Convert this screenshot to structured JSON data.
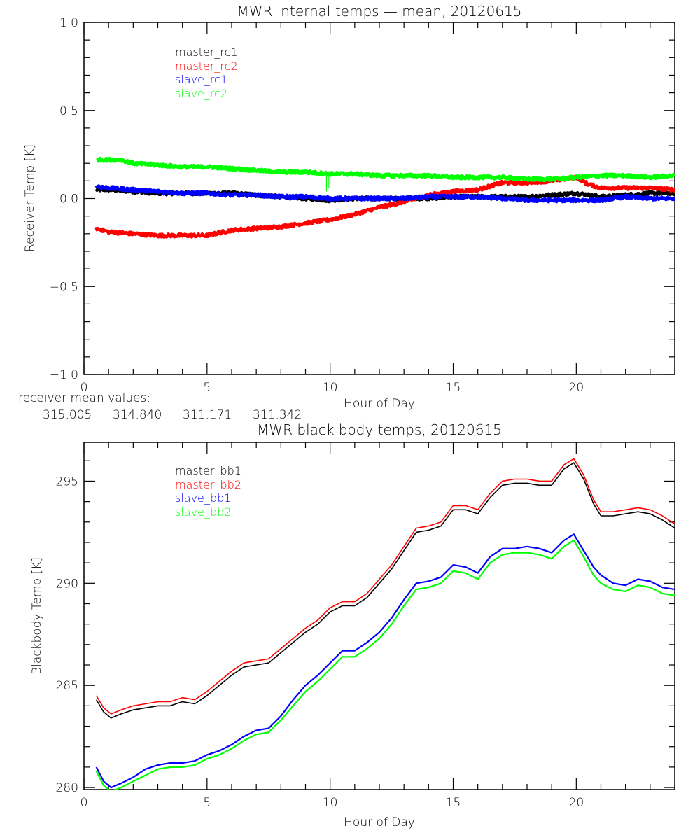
{
  "chart_data": [
    {
      "type": "line",
      "title": "MWR internal temps — mean, 20120615",
      "xlabel": "Hour of Day",
      "ylabel": "Receiver Temp [K]",
      "xlim": [
        0,
        24
      ],
      "ylim": [
        -1.0,
        1.0
      ],
      "xticks": [
        "0",
        "5",
        "10",
        "15",
        "20"
      ],
      "xtick_values": [
        0,
        5,
        10,
        15,
        20
      ],
      "x_minor_step": 1,
      "yticks": [
        "−1.0",
        "−0.5",
        "0.0",
        "0.5",
        "1.0"
      ],
      "ytick_values": [
        -1.0,
        -0.5,
        0.0,
        0.5,
        1.0
      ],
      "y_minor_step": 0.1,
      "grid": false,
      "legend_position": "top-left",
      "noise": true,
      "series": [
        {
          "name": "master_rc1",
          "color": "#000000",
          "x": [
            0.5,
            1,
            2,
            3,
            4,
            5,
            6,
            7,
            8,
            9,
            10,
            11,
            12,
            13,
            14,
            15,
            16,
            17,
            18,
            19,
            20,
            21,
            22,
            23,
            24
          ],
          "y": [
            0.05,
            0.05,
            0.04,
            0.03,
            0.03,
            0.03,
            0.03,
            0.02,
            0.01,
            0.0,
            -0.01,
            0.0,
            0.0,
            0.0,
            0.0,
            0.01,
            0.01,
            0.01,
            0.01,
            0.02,
            0.03,
            0.01,
            0.02,
            0.03,
            0.03
          ]
        },
        {
          "name": "master_rc2",
          "color": "#ff0000",
          "x": [
            0.5,
            1,
            2,
            3,
            4,
            5,
            6,
            7,
            8,
            9,
            10,
            11,
            12,
            13,
            14,
            15,
            16,
            17,
            18,
            19,
            19.5,
            20,
            20.5,
            21,
            22,
            23,
            24
          ],
          "y": [
            -0.17,
            -0.19,
            -0.2,
            -0.21,
            -0.21,
            -0.21,
            -0.18,
            -0.17,
            -0.16,
            -0.14,
            -0.12,
            -0.09,
            -0.05,
            -0.02,
            0.02,
            0.04,
            0.05,
            0.09,
            0.09,
            0.1,
            0.11,
            0.12,
            0.08,
            0.06,
            0.06,
            0.06,
            0.05
          ]
        },
        {
          "name": "slave_rc1",
          "color": "#0000ff",
          "x": [
            0.5,
            1,
            2,
            3,
            4,
            5,
            6,
            7,
            8,
            9,
            10,
            11,
            12,
            13,
            14,
            15,
            16,
            17,
            18,
            19,
            20,
            21,
            22,
            23,
            24
          ],
          "y": [
            0.07,
            0.06,
            0.05,
            0.04,
            0.03,
            0.03,
            0.02,
            0.02,
            0.01,
            0.01,
            0.0,
            0.0,
            0.0,
            0.0,
            0.01,
            0.01,
            0.01,
            0.0,
            -0.01,
            -0.01,
            -0.01,
            -0.01,
            0.01,
            0.0,
            0.0
          ]
        },
        {
          "name": "slave_rc2",
          "color": "#00ff00",
          "x": [
            0.5,
            1,
            1.5,
            2,
            3,
            4,
            5,
            6,
            7,
            8,
            9,
            10,
            11,
            12,
            13,
            14,
            15,
            16,
            17,
            18,
            19,
            20,
            21,
            22,
            23,
            24
          ],
          "y": [
            0.22,
            0.22,
            0.22,
            0.2,
            0.19,
            0.18,
            0.18,
            0.17,
            0.16,
            0.15,
            0.15,
            0.14,
            0.14,
            0.13,
            0.13,
            0.13,
            0.12,
            0.12,
            0.12,
            0.11,
            0.11,
            0.12,
            0.13,
            0.13,
            0.12,
            0.13
          ]
        }
      ],
      "annotation": {
        "label": "receiver mean values:",
        "values": [
          {
            "text": "315.005",
            "color": "#000000"
          },
          {
            "text": "314.840",
            "color": "#ff0000"
          },
          {
            "text": "311.171",
            "color": "#0000ff"
          },
          {
            "text": "311.342",
            "color": "#00ff00"
          }
        ]
      }
    },
    {
      "type": "line",
      "title": "MWR black body temps, 20120615",
      "xlabel": "Hour of Day",
      "ylabel": "Blackbody Temp [K]",
      "xlim": [
        0,
        24
      ],
      "ylim": [
        279.9,
        296.9
      ],
      "xticks": [
        "0",
        "5",
        "10",
        "15",
        "20"
      ],
      "xtick_values": [
        0,
        5,
        10,
        15,
        20
      ],
      "x_minor_step": 1,
      "yticks": [
        "280",
        "285",
        "290",
        "295"
      ],
      "ytick_values": [
        280,
        285,
        290,
        295
      ],
      "y_minor_step": 1,
      "grid": false,
      "legend_position": "top-left",
      "noise": false,
      "series": [
        {
          "name": "master_bb1",
          "color": "#000000",
          "x": [
            0.5,
            0.8,
            1.1,
            1.5,
            2,
            2.5,
            3,
            3.5,
            4,
            4.5,
            5,
            5.5,
            6,
            6.5,
            7,
            7.5,
            8,
            8.5,
            9,
            9.5,
            10,
            10.5,
            11,
            11.5,
            12,
            12.5,
            13,
            13.5,
            14,
            14.5,
            15,
            15.5,
            16,
            16.5,
            17,
            17.5,
            18,
            18.5,
            19,
            19.5,
            19.9,
            20.3,
            20.7,
            21,
            21.5,
            22,
            22.5,
            23,
            23.5,
            24
          ],
          "y": [
            284.3,
            283.7,
            283.4,
            283.6,
            283.8,
            283.9,
            284.0,
            284.0,
            284.2,
            284.1,
            284.5,
            285.0,
            285.5,
            285.9,
            286.0,
            286.1,
            286.6,
            287.1,
            287.6,
            288.0,
            288.6,
            288.9,
            288.9,
            289.3,
            290.0,
            290.7,
            291.6,
            292.5,
            292.6,
            292.8,
            293.6,
            293.6,
            293.4,
            294.2,
            294.8,
            294.9,
            294.9,
            294.8,
            294.8,
            295.6,
            295.9,
            295.1,
            293.9,
            293.3,
            293.3,
            293.4,
            293.5,
            293.4,
            293.1,
            292.7
          ]
        },
        {
          "name": "master_bb2",
          "color": "#ff0000",
          "x": [
            0.5,
            0.8,
            1.1,
            1.5,
            2,
            2.5,
            3,
            3.5,
            4,
            4.5,
            5,
            5.5,
            6,
            6.5,
            7,
            7.5,
            8,
            8.5,
            9,
            9.5,
            10,
            10.5,
            11,
            11.5,
            12,
            12.5,
            13,
            13.5,
            14,
            14.5,
            15,
            15.5,
            16,
            16.5,
            17,
            17.5,
            18,
            18.5,
            19,
            19.5,
            19.9,
            20.3,
            20.7,
            21,
            21.5,
            22,
            22.5,
            23,
            23.5,
            24
          ],
          "y": [
            284.5,
            283.9,
            283.6,
            283.8,
            284.0,
            284.1,
            284.2,
            284.2,
            284.4,
            284.3,
            284.7,
            285.2,
            285.7,
            286.1,
            286.2,
            286.3,
            286.8,
            287.3,
            287.8,
            288.2,
            288.8,
            289.1,
            289.1,
            289.5,
            290.2,
            290.9,
            291.8,
            292.7,
            292.8,
            293.0,
            293.8,
            293.8,
            293.6,
            294.4,
            295.0,
            295.1,
            295.1,
            295.0,
            295.0,
            295.8,
            296.1,
            295.3,
            294.1,
            293.5,
            293.5,
            293.6,
            293.7,
            293.6,
            293.3,
            292.9
          ]
        },
        {
          "name": "slave_bb1",
          "color": "#0000ff",
          "x": [
            0.5,
            0.8,
            1.1,
            1.5,
            2,
            2.5,
            3,
            3.5,
            4,
            4.5,
            5,
            5.5,
            6,
            6.5,
            7,
            7.5,
            8,
            8.5,
            9,
            9.5,
            10,
            10.5,
            11,
            11.5,
            12,
            12.5,
            13,
            13.5,
            14,
            14.5,
            15,
            15.5,
            16,
            16.5,
            17,
            17.5,
            18,
            18.5,
            19,
            19.5,
            19.9,
            20.3,
            20.7,
            21,
            21.5,
            22,
            22.5,
            23,
            23.5,
            24
          ],
          "y": [
            281.0,
            280.3,
            280.0,
            280.2,
            280.5,
            280.9,
            281.1,
            281.2,
            281.2,
            281.3,
            281.6,
            281.8,
            282.1,
            282.5,
            282.8,
            282.9,
            283.5,
            284.3,
            285.0,
            285.5,
            286.1,
            286.7,
            286.7,
            287.1,
            287.6,
            288.3,
            289.2,
            290.0,
            290.1,
            290.3,
            290.9,
            290.8,
            290.5,
            291.3,
            291.7,
            291.7,
            291.8,
            291.7,
            291.5,
            292.1,
            292.4,
            291.6,
            290.8,
            290.4,
            290.0,
            289.9,
            290.2,
            290.1,
            289.8,
            289.7
          ]
        },
        {
          "name": "slave_bb2",
          "color": "#00ff00",
          "x": [
            0.5,
            0.8,
            1.1,
            1.5,
            2,
            2.5,
            3,
            3.5,
            4,
            4.5,
            5,
            5.5,
            6,
            6.5,
            7,
            7.5,
            8,
            8.5,
            9,
            9.5,
            10,
            10.5,
            11,
            11.5,
            12,
            12.5,
            13,
            13.5,
            14,
            14.5,
            15,
            15.5,
            16,
            16.5,
            17,
            17.5,
            18,
            18.5,
            19,
            19.5,
            19.9,
            20.3,
            20.7,
            21,
            21.5,
            22,
            22.5,
            23,
            23.5,
            24
          ],
          "y": [
            280.8,
            280.1,
            279.8,
            280.0,
            280.3,
            280.6,
            280.9,
            281.0,
            281.0,
            281.1,
            281.4,
            281.6,
            281.9,
            282.3,
            282.6,
            282.7,
            283.3,
            284.0,
            284.7,
            285.2,
            285.8,
            286.4,
            286.4,
            286.8,
            287.3,
            288.0,
            288.9,
            289.7,
            289.8,
            290.0,
            290.6,
            290.5,
            290.2,
            291.0,
            291.4,
            291.5,
            291.5,
            291.4,
            291.2,
            291.8,
            292.1,
            291.3,
            290.4,
            290.0,
            289.7,
            289.6,
            289.9,
            289.8,
            289.5,
            289.4
          ]
        }
      ]
    }
  ]
}
